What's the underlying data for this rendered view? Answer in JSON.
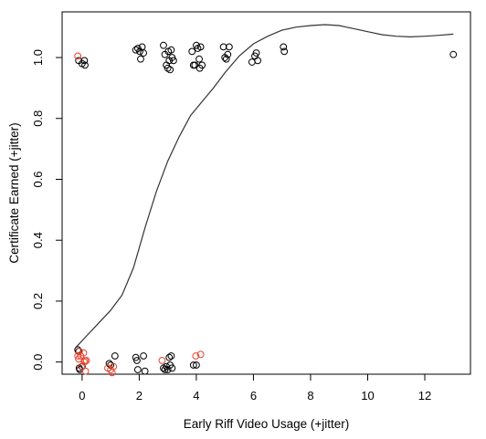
{
  "chart_data": {
    "type": "scatter",
    "title": "",
    "xlabel": "Early Riff Video Usage (+jitter)",
    "ylabel": "Certificate Earned (+jitter)",
    "xlim": [
      -0.7,
      13.6
    ],
    "ylim": [
      -0.04,
      1.15
    ],
    "x_ticks": [
      0,
      2,
      4,
      6,
      8,
      10,
      12
    ],
    "y_ticks": [
      0.0,
      0.2,
      0.4,
      0.6,
      0.8,
      1.0
    ],
    "x_tick_labels": [
      "0",
      "2",
      "4",
      "6",
      "8",
      "10",
      "12"
    ],
    "y_tick_labels": [
      "0.0",
      "0.2",
      "0.4",
      "0.6",
      "0.8",
      "1.0"
    ],
    "grid": false,
    "legend": "none",
    "colors": {
      "black_points": "#000000",
      "red_points": "#e8432e",
      "curve": "#333333"
    },
    "series": [
      {
        "color": "#000000",
        "points": [
          [
            -0.12,
            0.99
          ],
          [
            0.0,
            0.98
          ],
          [
            0.08,
            0.99
          ],
          [
            0.1,
            0.975
          ],
          [
            1.88,
            1.025
          ],
          [
            1.95,
            1.03
          ],
          [
            2.02,
            1.02
          ],
          [
            2.1,
            1.035
          ],
          [
            2.15,
            1.015
          ],
          [
            2.05,
            0.995
          ],
          [
            2.85,
            1.04
          ],
          [
            2.9,
            1.01
          ],
          [
            2.95,
            0.975
          ],
          [
            3.0,
            0.965
          ],
          [
            3.02,
            1.02
          ],
          [
            3.05,
            0.99
          ],
          [
            3.08,
            0.96
          ],
          [
            3.12,
            1.025
          ],
          [
            3.15,
            1.0
          ],
          [
            3.2,
            0.99
          ],
          [
            3.85,
            1.02
          ],
          [
            3.9,
            0.975
          ],
          [
            3.95,
            0.975
          ],
          [
            4.0,
            1.04
          ],
          [
            4.05,
            1.03
          ],
          [
            4.1,
            0.995
          ],
          [
            4.12,
            0.965
          ],
          [
            4.15,
            1.035
          ],
          [
            4.2,
            0.975
          ],
          [
            4.95,
            1.035
          ],
          [
            5.0,
            1.0
          ],
          [
            5.05,
            0.995
          ],
          [
            5.1,
            1.01
          ],
          [
            5.15,
            1.035
          ],
          [
            5.95,
            0.985
          ],
          [
            6.05,
            1.005
          ],
          [
            6.1,
            1.015
          ],
          [
            6.15,
            0.99
          ],
          [
            7.05,
            1.035
          ],
          [
            7.08,
            1.02
          ],
          [
            13.0,
            1.01
          ],
          [
            -0.15,
            0.04
          ],
          [
            -0.12,
            0.035
          ],
          [
            -0.1,
            -0.02
          ],
          [
            -0.08,
            -0.025
          ],
          [
            0.0,
            -0.015
          ],
          [
            0.95,
            -0.005
          ],
          [
            1.0,
            -0.01
          ],
          [
            1.15,
            0.02
          ],
          [
            1.88,
            0.015
          ],
          [
            1.92,
            0.005
          ],
          [
            1.95,
            -0.025
          ],
          [
            2.15,
            0.02
          ],
          [
            2.2,
            -0.03
          ],
          [
            2.85,
            -0.02
          ],
          [
            2.9,
            -0.025
          ],
          [
            2.95,
            -0.015
          ],
          [
            3.0,
            -0.025
          ],
          [
            3.05,
            0.015
          ],
          [
            3.08,
            -0.01
          ],
          [
            3.12,
            0.02
          ],
          [
            3.15,
            -0.02
          ],
          [
            3.9,
            -0.01
          ],
          [
            4.0,
            -0.01
          ]
        ]
      },
      {
        "color": "#e8432e",
        "points": [
          [
            -0.15,
            1.005
          ],
          [
            -0.15,
            0.02
          ],
          [
            -0.12,
            0.01
          ],
          [
            -0.1,
            0.035
          ],
          [
            -0.05,
            0.02
          ],
          [
            -0.02,
            -0.015
          ],
          [
            0.05,
            0.03
          ],
          [
            0.08,
            0.0
          ],
          [
            0.1,
            0.005
          ],
          [
            0.15,
            0.005
          ],
          [
            0.12,
            -0.03
          ],
          [
            0.9,
            -0.02
          ],
          [
            1.0,
            -0.025
          ],
          [
            1.05,
            -0.035
          ],
          [
            1.1,
            -0.015
          ],
          [
            2.8,
            0.005
          ],
          [
            3.98,
            0.02
          ],
          [
            4.15,
            0.025
          ]
        ]
      }
    ],
    "smooth_curve": {
      "x": [
        -0.2,
        0.2,
        0.6,
        1.0,
        1.4,
        1.8,
        2.2,
        2.6,
        3.0,
        3.4,
        3.8,
        4.2,
        4.6,
        5.0,
        5.5,
        6.0,
        6.5,
        7.0,
        7.5,
        8.0,
        8.5,
        9.0,
        9.5,
        10.0,
        10.5,
        11.0,
        11.5,
        12.0,
        12.5,
        13.0
      ],
      "y": [
        0.05,
        0.09,
        0.13,
        0.17,
        0.22,
        0.31,
        0.44,
        0.56,
        0.66,
        0.74,
        0.81,
        0.855,
        0.9,
        0.95,
        1.005,
        1.045,
        1.07,
        1.09,
        1.1,
        1.105,
        1.108,
        1.105,
        1.095,
        1.085,
        1.075,
        1.07,
        1.068,
        1.07,
        1.073,
        1.077
      ]
    }
  }
}
